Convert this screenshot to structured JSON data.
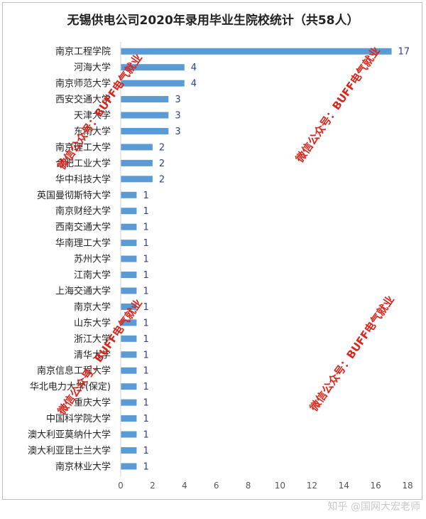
{
  "chart_data": {
    "type": "bar",
    "orientation": "horizontal",
    "title": "无锡供电公司2020年录用毕业生院校统计（共58人）",
    "categories": [
      "南京工程学院",
      "河海大学",
      "南京师范大学",
      "西安交通大学",
      "天津大学",
      "东南大学",
      "南京理工大学",
      "合肥工业大学",
      "华中科技大学",
      "英国曼彻斯特大学",
      "南京财经大学",
      "西南交通大学",
      "华南理工大学",
      "苏州大学",
      "江南大学",
      "上海交通大学",
      "南京大学",
      "山东大学",
      "浙江大学",
      "清华大学",
      "南京信息工程大学",
      "华北电力大学(保定)",
      "重庆大学",
      "中国科学院大学",
      "澳大利亚莫纳什大学",
      "澳大利亚昆士兰大学",
      "南京林业大学"
    ],
    "values": [
      17,
      4,
      4,
      3,
      3,
      3,
      2,
      2,
      2,
      1,
      1,
      1,
      1,
      1,
      1,
      1,
      1,
      1,
      1,
      1,
      1,
      1,
      1,
      1,
      1,
      1,
      1
    ],
    "xlim": [
      0,
      18
    ],
    "xticks": [
      0,
      2,
      4,
      6,
      8,
      10,
      12,
      14,
      16,
      18
    ],
    "bar_color": "#5b9bd5",
    "data_labels": true,
    "grid": false
  },
  "watermarks": [
    "微信公众号：BUFF电气就业",
    "微信公众号：BUFF电气就业",
    "微信公众号：BUFF电气就业",
    "微信公众号：BUFF电气就业"
  ],
  "footer": {
    "credit": "知乎 @国网大宏老师"
  }
}
